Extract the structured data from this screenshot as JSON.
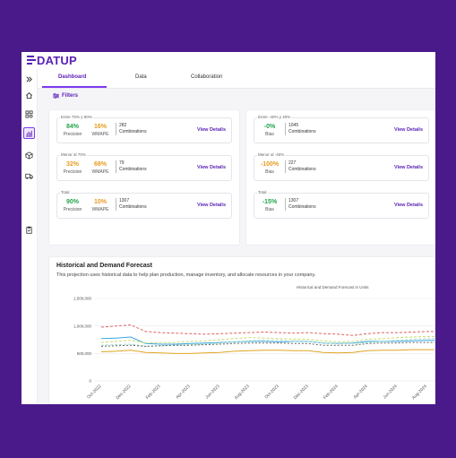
{
  "brand": {
    "logo_text": "DATUP"
  },
  "sidebar": {
    "items": [
      {
        "icon": "expand-icon"
      },
      {
        "icon": "home-icon"
      },
      {
        "icon": "grid-icon"
      },
      {
        "icon": "chart-icon"
      },
      {
        "icon": "box-icon"
      },
      {
        "icon": "truck-icon"
      },
      {
        "icon": "clipboard-icon"
      }
    ]
  },
  "tabs": [
    {
      "label": "Dashboard"
    },
    {
      "label": "Data"
    },
    {
      "label": "Collaboration"
    }
  ],
  "filters_label": "Filters",
  "left_cards": [
    {
      "title": "Entre 70% y 90%",
      "precision": "84%",
      "precision_label": "Precision",
      "wmape": "16%",
      "wmape_label": "WMAPE",
      "count": "282",
      "count_label": "Combinations",
      "view": "View Details"
    },
    {
      "title": "Menor al 70%",
      "precision": "32%",
      "precision_label": "Precision",
      "wmape": "68%",
      "wmape_label": "WMAPE",
      "count": "79",
      "count_label": "Combinations",
      "view": "View Details"
    },
    {
      "title": "Total",
      "precision": "90%",
      "precision_label": "Precision",
      "wmape": "10%",
      "wmape_label": "WMAPE",
      "count": "1307",
      "count_label": "Combinations",
      "view": "View Details"
    }
  ],
  "right_cards": [
    {
      "title": "Entre -40% y 40%",
      "bias": "-0%",
      "bias_label": "Bias",
      "count": "1045",
      "count_label": "Combinations",
      "view": "View Details"
    },
    {
      "title": "Menor al -40%",
      "bias": "-100%",
      "bias_label": "Bias",
      "count": "227",
      "count_label": "Combinations",
      "view": "View Details"
    },
    {
      "title": "Total",
      "bias": "-15%",
      "bias_label": "Bias",
      "count": "1307",
      "count_label": "Combinations",
      "view": "View Details"
    }
  ],
  "forecast": {
    "title": "Historical and Demand Forecast",
    "subtitle": "This projection uses historical data to help plan production, manage inventory, and allocate resources in your company.",
    "chart_title": "Historical and Demand Forecast in Units"
  },
  "colors": {
    "accent": "#5b21b6",
    "green": "#22a34a",
    "orange": "#e89a1d"
  },
  "chart_data": {
    "type": "line",
    "title": "Historical and Demand Forecast in Units",
    "x": [
      "Oct-2022",
      "Nov-2022",
      "Dec-2022",
      "Jan-2023",
      "Feb-2023",
      "Mar-2023",
      "Apr-2023",
      "May-2023",
      "Jun-2023",
      "Jul-2023",
      "Aug-2023",
      "Sep-2023",
      "Oct-2023",
      "Nov-2023",
      "Dec-2023",
      "Jan-2024",
      "Feb-2024",
      "Mar-2024",
      "Apr-2024",
      "May-2024",
      "Jun-2024",
      "Jul-2024",
      "Aug-2024",
      "Sep-2024"
    ],
    "x_tick_labels": [
      "Oct-2022",
      "Dec-2022",
      "Feb-2023",
      "Apr-2023",
      "Jun-2023",
      "Aug-2023",
      "Oct-2023",
      "Dec-2023",
      "Feb-2024",
      "Apr-2024",
      "Jun-2024",
      "Aug-2024"
    ],
    "ylim": [
      0,
      1600000
    ],
    "y_ticks": [
      0,
      500000,
      1000000,
      1500000
    ],
    "y_tick_labels": [
      "0",
      "500,000",
      "1,000,000",
      "1,500,000"
    ],
    "series": [
      {
        "color": "#e06060",
        "dash": "3,2",
        "values": [
          980000,
          1000000,
          1020000,
          900000,
          880000,
          870000,
          860000,
          850000,
          860000,
          870000,
          880000,
          890000,
          880000,
          870000,
          880000,
          860000,
          850000,
          830000,
          860000,
          880000,
          880000,
          890000,
          900000,
          900000
        ]
      },
      {
        "color": "#3ba6e0",
        "dash": "",
        "values": [
          770000,
          780000,
          800000,
          680000,
          670000,
          670000,
          680000,
          690000,
          700000,
          710000,
          720000,
          720000,
          710000,
          720000,
          720000,
          690000,
          680000,
          690000,
          720000,
          720000,
          720000,
          730000,
          740000,
          740000
        ]
      },
      {
        "color": "#c8dc6e",
        "dash": "3,2",
        "values": [
          700000,
          720000,
          740000,
          690000,
          700000,
          700000,
          720000,
          730000,
          750000,
          770000,
          790000,
          780000,
          770000,
          760000,
          760000,
          730000,
          710000,
          720000,
          760000,
          770000,
          790000,
          800000,
          810000,
          810000
        ]
      },
      {
        "color": "#a6dcc8",
        "dash": "3,2",
        "values": [
          650000,
          660000,
          670000,
          630000,
          640000,
          650000,
          660000,
          670000,
          690000,
          710000,
          730000,
          740000,
          740000,
          720000,
          720000,
          690000,
          680000,
          680000,
          700000,
          720000,
          740000,
          760000,
          770000,
          770000
        ]
      },
      {
        "color": "#666666",
        "dash": "2,2",
        "values": [
          630000,
          640000,
          650000,
          630000,
          640000,
          650000,
          650000,
          660000,
          670000,
          680000,
          690000,
          690000,
          690000,
          680000,
          680000,
          650000,
          650000,
          650000,
          680000,
          690000,
          690000,
          700000,
          700000,
          700000
        ]
      },
      {
        "color": "#e0a520",
        "dash": "",
        "values": [
          530000,
          540000,
          560000,
          520000,
          510000,
          500000,
          500000,
          510000,
          520000,
          540000,
          550000,
          560000,
          560000,
          550000,
          550000,
          520000,
          510000,
          520000,
          550000,
          560000,
          560000,
          570000,
          570000,
          570000
        ]
      }
    ]
  }
}
